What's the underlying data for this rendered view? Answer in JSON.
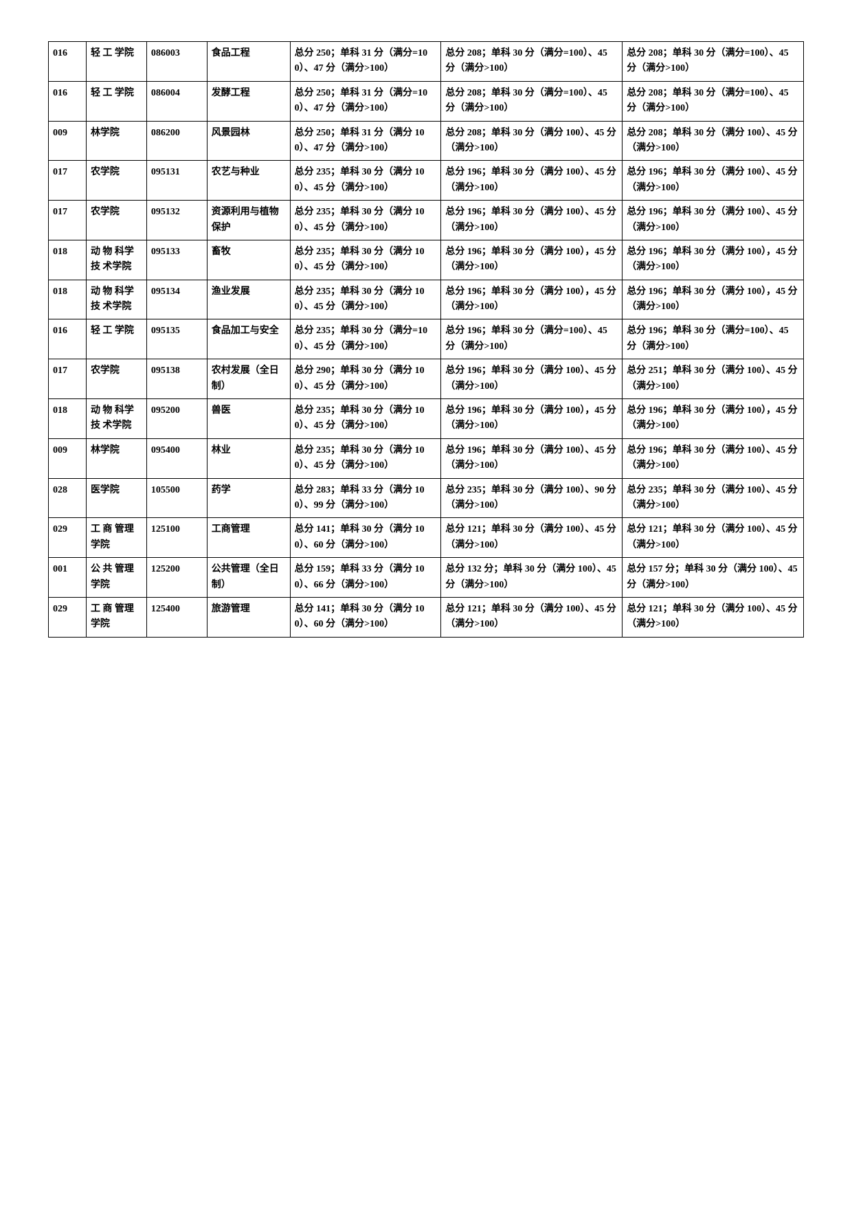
{
  "rows": [
    {
      "code": "016",
      "college": "轻 工 学院",
      "major_code": "086003",
      "major_name": "食品工程",
      "col_a": "总分 250；单科 31 分（满分=100）、47 分（满分>100）",
      "col_b": "总分 208；单科 30 分（满分=100）、45 分（满分>100）",
      "col_c": "总分 208；单科 30 分（满分=100）、45 分（满分>100）"
    },
    {
      "code": "016",
      "college": "轻 工 学院",
      "major_code": "086004",
      "major_name": "发酵工程",
      "col_a": "总分 250；单科 31 分（满分=100）、47 分（满分>100）",
      "col_b": "总分 208；单科 30 分（满分=100）、45 分（满分>100）",
      "col_c": "总分 208；单科 30 分（满分=100）、45 分（满分>100）"
    },
    {
      "code": "009",
      "college": "林学院",
      "major_code": "086200",
      "major_name": "风景园林",
      "col_a": "总分 250；单科 31 分（满分 100）、47 分（满分>100）",
      "col_b": "总分 208；单科 30 分（满分 100）、45 分（满分>100）",
      "col_c": "总分 208；单科 30 分（满分 100）、45 分（满分>100）"
    },
    {
      "code": "017",
      "college": "农学院",
      "major_code": "095131",
      "major_name": "农艺与种业",
      "col_a": "总分 235；单科 30 分（满分 100）、45 分（满分>100）",
      "col_b": "总分 196；单科 30 分（满分 100）、45 分（满分>100）",
      "col_c": "总分 196；单科 30 分（满分 100）、45 分（满分>100）"
    },
    {
      "code": "017",
      "college": "农学院",
      "major_code": "095132",
      "major_name": "资源利用与植物保护",
      "col_a": "总分 235；单科 30 分（满分 100）、45 分（满分>100）",
      "col_b": "总分 196；单科 30 分（满分 100）、45 分（满分>100）",
      "col_c": "总分 196；单科 30 分（满分 100）、45 分（满分>100）"
    },
    {
      "code": "018",
      "college": "动 物 科学 技 术学院",
      "major_code": "095133",
      "major_name": "畜牧",
      "col_a": "总分 235；单科 30 分（满分 100）、45 分（满分>100）",
      "col_b": "总分 196；单科 30 分（满分 100），45 分（满分>100）",
      "col_c": "总分 196；单科 30 分（满分 100），45 分（满分>100）"
    },
    {
      "code": "018",
      "college": "动 物 科学 技 术学院",
      "major_code": "095134",
      "major_name": "渔业发展",
      "col_a": "总分 235；单科 30 分（满分 100）、45 分（满分>100）",
      "col_b": "总分 196；单科 30 分（满分 100），45 分（满分>100）",
      "col_c": "总分 196；单科 30 分（满分 100），45 分（满分>100）"
    },
    {
      "code": "016",
      "college": "轻 工 学院",
      "major_code": "095135",
      "major_name": "食品加工与安全",
      "col_a": "总分 235；单科 30 分（满分=100）、45 分（满分>100）",
      "col_b": "总分 196；单科 30 分（满分=100）、45 分（满分>100）",
      "col_c": "总分 196；单科 30 分（满分=100）、45 分（满分>100）"
    },
    {
      "code": "017",
      "college": "农学院",
      "major_code": "095138",
      "major_name": "农村发展（全日制）",
      "col_a": "总分 290；单科 30 分（满分 100）、45 分（满分>100）",
      "col_b": "总分 196；单科 30 分（满分 100）、45 分（满分>100）",
      "col_c": "总分 251；单科 30 分（满分 100）、45 分（满分>100）"
    },
    {
      "code": "018",
      "college": "动 物 科学 技 术学院",
      "major_code": "095200",
      "major_name": "兽医",
      "col_a": "总分 235；单科 30 分（满分 100）、45 分（满分>100）",
      "col_b": "总分 196；单科 30 分（满分 100），45 分（满分>100）",
      "col_c": "总分 196；单科 30 分（满分 100），45 分（满分>100）"
    },
    {
      "code": "009",
      "college": "林学院",
      "major_code": "095400",
      "major_name": "林业",
      "col_a": "总分 235；单科 30 分（满分 100）、45 分（满分>100）",
      "col_b": "总分 196；单科 30 分（满分 100）、45 分（满分>100）",
      "col_c": "总分 196；单科 30 分（满分 100）、45 分（满分>100）"
    },
    {
      "code": "028",
      "college": "医学院",
      "major_code": "105500",
      "major_name": "药学",
      "col_a": "总分 283；单科 33 分（满分 100）、99 分（满分>100）",
      "col_b": "总分 235；单科 30 分（满分 100）、90 分（满分>100）",
      "col_c": "总分 235；单科 30 分（满分 100）、45 分（满分>100）"
    },
    {
      "code": "029",
      "college": "工 商 管理学院",
      "major_code": "125100",
      "major_name": "工商管理",
      "col_a": "总分 141；单科 30 分（满分 100）、60 分（满分>100）",
      "col_b": "总分 121；单科 30 分（满分 100）、45 分（满分>100）",
      "col_c": "总分 121；单科 30 分（满分 100）、45 分（满分>100）"
    },
    {
      "code": "001",
      "college": "公 共 管理学院",
      "major_code": "125200",
      "major_name": "公共管理（全日制）",
      "col_a": "总分 159；单科 33 分（满分 100）、66 分（满分>100）",
      "col_b": "总分 132 分；单科 30 分（满分 100）、45 分（满分>100）",
      "col_c": "总分 157 分；单科 30 分（满分 100）、45 分（满分>100）"
    },
    {
      "code": "029",
      "college": "工 商 管理学院",
      "major_code": "125400",
      "major_name": "旅游管理",
      "col_a": "总分 141；单科 30 分（满分 100）、60 分（满分>100）",
      "col_b": "总分 121；单科 30 分（满分 100）、45 分（满分>100）",
      "col_c": "总分 121；单科 30 分（满分 100）、45 分（满分>100）"
    }
  ]
}
